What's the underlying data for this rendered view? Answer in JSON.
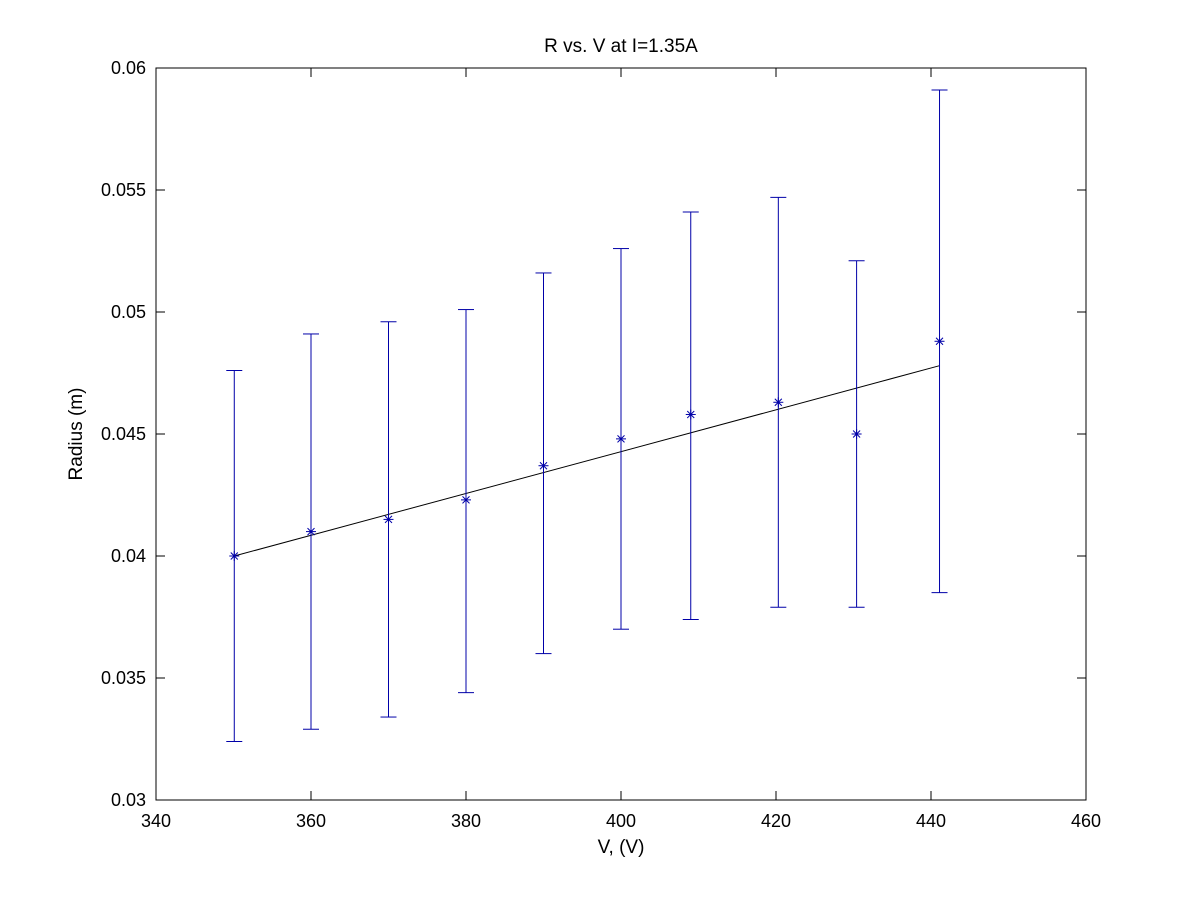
{
  "chart_data": {
    "type": "scatter",
    "title": "R vs. V at I=1.35A",
    "xlabel": "V, (V)",
    "ylabel": "Radius (m)",
    "xlim": [
      340,
      460
    ],
    "ylim": [
      0.03,
      0.06
    ],
    "x_ticks": [
      340,
      360,
      380,
      400,
      420,
      440,
      460
    ],
    "x_tick_labels": [
      "340",
      "360",
      "380",
      "400",
      "420",
      "440",
      "460"
    ],
    "y_ticks": [
      0.03,
      0.035,
      0.04,
      0.045,
      0.05,
      0.055,
      0.06
    ],
    "y_tick_labels": [
      "0.03",
      "0.035",
      "0.04",
      "0.045",
      "0.05",
      "0.055",
      "0.06"
    ],
    "grid": false,
    "marker": "asterisk",
    "series": [
      {
        "color": "#0000a8",
        "points": [
          {
            "x": 350.1,
            "y": 0.04,
            "lower": 0.0324,
            "upper": 0.0476
          },
          {
            "x": 360.0,
            "y": 0.041,
            "lower": 0.0329,
            "upper": 0.0491
          },
          {
            "x": 370.0,
            "y": 0.0415,
            "lower": 0.0334,
            "upper": 0.0496
          },
          {
            "x": 380.0,
            "y": 0.0423,
            "lower": 0.0344,
            "upper": 0.0501
          },
          {
            "x": 390.0,
            "y": 0.0437,
            "lower": 0.036,
            "upper": 0.0516
          },
          {
            "x": 400.0,
            "y": 0.0448,
            "lower": 0.037,
            "upper": 0.0526
          },
          {
            "x": 409.0,
            "y": 0.0458,
            "lower": 0.0374,
            "upper": 0.0541
          },
          {
            "x": 420.3,
            "y": 0.0463,
            "lower": 0.0379,
            "upper": 0.0547
          },
          {
            "x": 430.4,
            "y": 0.045,
            "lower": 0.0379,
            "upper": 0.0521
          },
          {
            "x": 441.1,
            "y": 0.0488,
            "lower": 0.0385,
            "upper": 0.0591
          }
        ]
      }
    ],
    "fit_line": {
      "color": "#000000",
      "x": [
        350.1,
        441.1
      ],
      "y": [
        0.04,
        0.0478
      ]
    }
  }
}
